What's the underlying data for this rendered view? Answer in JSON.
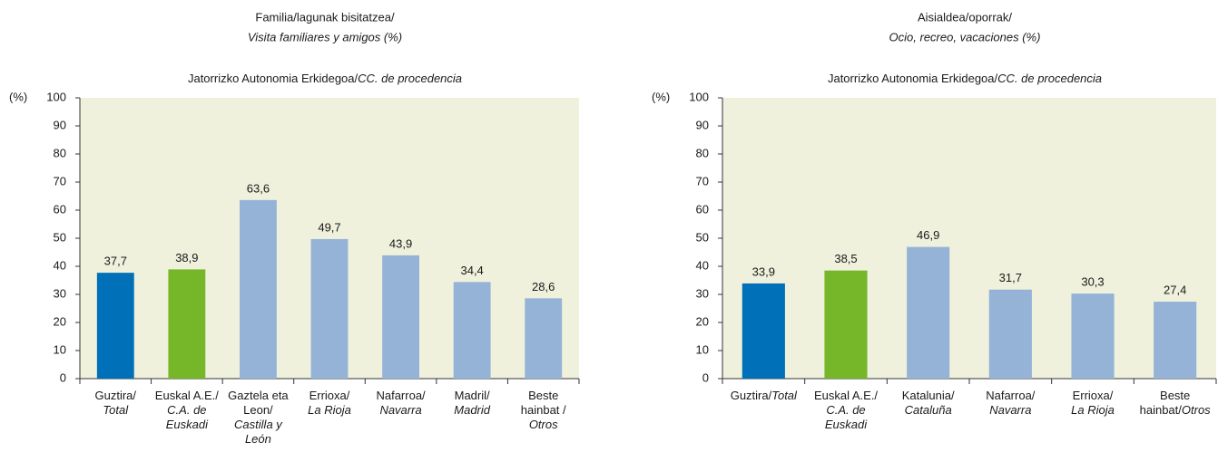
{
  "chart_data": [
    {
      "type": "bar",
      "title": [
        "Familia/lagunak bisitatzea/",
        "Visita familiares y amigos (%)"
      ],
      "subtitle": [
        "Jatorrizko Autonomia Erkidegoa/",
        "CC. de procedencia"
      ],
      "ylabel": "(%)",
      "categories": [
        [
          [
            {
              "t": "Guztira/"
            }
          ],
          [
            {
              "t": "Total",
              "i": true
            }
          ]
        ],
        [
          [
            {
              "t": "Euskal A.E./"
            }
          ],
          [
            {
              "t": "C.A. de",
              "i": true
            }
          ],
          [
            {
              "t": "Euskadi",
              "i": true
            }
          ]
        ],
        [
          [
            {
              "t": "Gaztela eta"
            }
          ],
          [
            {
              "t": "Leon/"
            }
          ],
          [
            {
              "t": "Castilla y",
              "i": true
            }
          ],
          [
            {
              "t": "León",
              "i": true
            }
          ]
        ],
        [
          [
            {
              "t": "Errioxa/"
            }
          ],
          [
            {
              "t": "La Rioja",
              "i": true
            }
          ]
        ],
        [
          [
            {
              "t": "Nafarroa/"
            }
          ],
          [
            {
              "t": "Navarra",
              "i": true
            }
          ]
        ],
        [
          [
            {
              "t": "Madril/"
            }
          ],
          [
            {
              "t": "Madrid",
              "i": true
            }
          ]
        ],
        [
          [
            {
              "t": "Beste"
            }
          ],
          [
            {
              "t": "hainbat /"
            }
          ],
          [
            {
              "t": "Otros",
              "i": true
            }
          ]
        ]
      ],
      "values": [
        37.7,
        38.9,
        63.6,
        49.7,
        43.9,
        34.4,
        28.6
      ],
      "value_labels": [
        "37,7",
        "38,9",
        "63,6",
        "49,7",
        "43,9",
        "34,4",
        "28,6"
      ],
      "colors": [
        "#0070b8",
        "#76b72a",
        "#95b3d7",
        "#95b3d7",
        "#95b3d7",
        "#95b3d7",
        "#95b3d7"
      ],
      "ylim": [
        0,
        100
      ],
      "yticks": [
        0,
        10,
        20,
        30,
        40,
        50,
        60,
        70,
        80,
        90,
        100
      ],
      "grid": false
    },
    {
      "type": "bar",
      "title": [
        "Aisialdea/oporrak/",
        "Ocio, recreo, vacaciones (%)"
      ],
      "subtitle": [
        "Jatorrizko Autonomia Erkidegoa/",
        "CC. de procedencia"
      ],
      "ylabel": "(%)",
      "categories": [
        [
          [
            {
              "t": "Guztira/"
            },
            {
              "t": "Total",
              "i": true
            }
          ]
        ],
        [
          [
            {
              "t": "Euskal A.E./"
            }
          ],
          [
            {
              "t": "C.A. de",
              "i": true
            }
          ],
          [
            {
              "t": "Euskadi",
              "i": true
            }
          ]
        ],
        [
          [
            {
              "t": "Katalunia/"
            }
          ],
          [
            {
              "t": "Cataluña",
              "i": true
            }
          ]
        ],
        [
          [
            {
              "t": "Nafarroa/"
            }
          ],
          [
            {
              "t": "Navarra",
              "i": true
            }
          ]
        ],
        [
          [
            {
              "t": "Errioxa/"
            }
          ],
          [
            {
              "t": "La Rioja",
              "i": true
            }
          ]
        ],
        [
          [
            {
              "t": "Beste"
            }
          ],
          [
            {
              "t": "hainbat/"
            },
            {
              "t": "Otros",
              "i": true
            }
          ]
        ]
      ],
      "values": [
        33.9,
        38.5,
        46.9,
        31.7,
        30.3,
        27.4
      ],
      "value_labels": [
        "33,9",
        "38,5",
        "46,9",
        "31,7",
        "30,3",
        "27,4"
      ],
      "colors": [
        "#0070b8",
        "#76b72a",
        "#95b3d7",
        "#95b3d7",
        "#95b3d7",
        "#95b3d7"
      ],
      "ylim": [
        0,
        100
      ],
      "yticks": [
        0,
        10,
        20,
        30,
        40,
        50,
        60,
        70,
        80,
        90,
        100
      ],
      "grid": false
    }
  ]
}
